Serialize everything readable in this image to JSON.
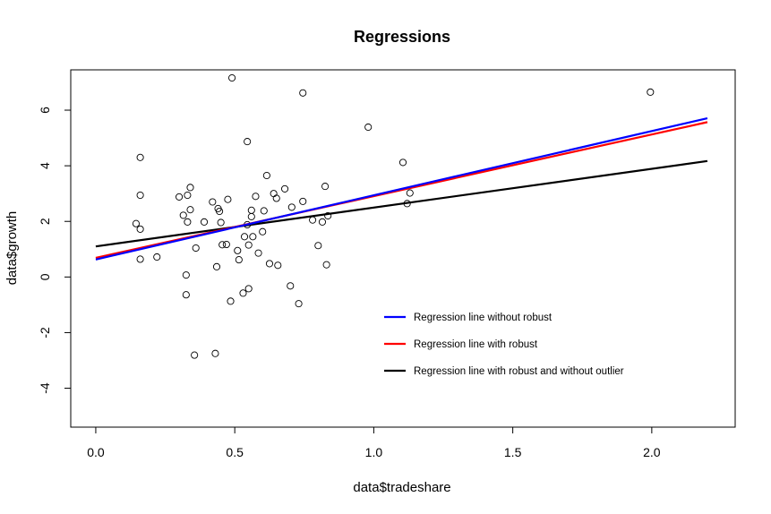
{
  "chart_data": {
    "type": "scatter",
    "title": "Regressions",
    "xlabel": "data$tradeshare",
    "ylabel": "data$growth",
    "xlim": [
      -0.09,
      2.3
    ],
    "ylim": [
      -5.4,
      7.45
    ],
    "x_ticks": [
      0.0,
      0.5,
      1.0,
      1.5,
      2.0
    ],
    "x_tick_labels": [
      "0.0",
      "0.5",
      "1.0",
      "1.5",
      "2.0"
    ],
    "y_ticks": [
      -4,
      -2,
      0,
      2,
      4,
      6
    ],
    "y_tick_labels": [
      "-4",
      "-2",
      "0",
      "2",
      "4",
      "6"
    ],
    "grid": false,
    "legend_position": "bottom-right",
    "points": [
      {
        "x": 0.49,
        "y": 7.16
      },
      {
        "x": 0.745,
        "y": 6.62
      },
      {
        "x": 1.995,
        "y": 6.65
      },
      {
        "x": 0.98,
        "y": 5.39
      },
      {
        "x": 0.545,
        "y": 4.87
      },
      {
        "x": 0.16,
        "y": 4.3
      },
      {
        "x": 1.105,
        "y": 4.12
      },
      {
        "x": 0.615,
        "y": 3.65
      },
      {
        "x": 0.825,
        "y": 3.26
      },
      {
        "x": 0.34,
        "y": 3.22
      },
      {
        "x": 0.68,
        "y": 3.17
      },
      {
        "x": 1.13,
        "y": 3.02
      },
      {
        "x": 0.64,
        "y": 3.0
      },
      {
        "x": 0.16,
        "y": 2.94
      },
      {
        "x": 0.33,
        "y": 2.94
      },
      {
        "x": 0.575,
        "y": 2.9
      },
      {
        "x": 0.3,
        "y": 2.88
      },
      {
        "x": 0.65,
        "y": 2.83
      },
      {
        "x": 0.475,
        "y": 2.79
      },
      {
        "x": 0.745,
        "y": 2.72
      },
      {
        "x": 0.42,
        "y": 2.7
      },
      {
        "x": 1.12,
        "y": 2.64
      },
      {
        "x": 0.705,
        "y": 2.51
      },
      {
        "x": 0.44,
        "y": 2.46
      },
      {
        "x": 0.34,
        "y": 2.42
      },
      {
        "x": 0.56,
        "y": 2.4
      },
      {
        "x": 0.605,
        "y": 2.38
      },
      {
        "x": 0.445,
        "y": 2.36
      },
      {
        "x": 0.315,
        "y": 2.22
      },
      {
        "x": 0.835,
        "y": 2.2
      },
      {
        "x": 0.56,
        "y": 2.17
      },
      {
        "x": 0.78,
        "y": 2.05
      },
      {
        "x": 0.815,
        "y": 1.98
      },
      {
        "x": 0.39,
        "y": 1.98
      },
      {
        "x": 0.33,
        "y": 1.98
      },
      {
        "x": 0.45,
        "y": 1.96
      },
      {
        "x": 0.145,
        "y": 1.92
      },
      {
        "x": 0.545,
        "y": 1.88
      },
      {
        "x": 0.16,
        "y": 1.72
      },
      {
        "x": 0.6,
        "y": 1.63
      },
      {
        "x": 0.535,
        "y": 1.45
      },
      {
        "x": 0.565,
        "y": 1.45
      },
      {
        "x": 0.47,
        "y": 1.17
      },
      {
        "x": 0.455,
        "y": 1.16
      },
      {
        "x": 0.55,
        "y": 1.15
      },
      {
        "x": 0.8,
        "y": 1.13
      },
      {
        "x": 0.36,
        "y": 1.04
      },
      {
        "x": 0.51,
        "y": 0.95
      },
      {
        "x": 0.585,
        "y": 0.86
      },
      {
        "x": 0.22,
        "y": 0.72
      },
      {
        "x": 0.16,
        "y": 0.64
      },
      {
        "x": 0.515,
        "y": 0.62
      },
      {
        "x": 0.625,
        "y": 0.48
      },
      {
        "x": 0.655,
        "y": 0.42
      },
      {
        "x": 0.83,
        "y": 0.44
      },
      {
        "x": 0.435,
        "y": 0.37
      },
      {
        "x": 0.325,
        "y": 0.07
      },
      {
        "x": 0.7,
        "y": -0.32
      },
      {
        "x": 0.55,
        "y": -0.42
      },
      {
        "x": 0.53,
        "y": -0.58
      },
      {
        "x": 0.325,
        "y": -0.64
      },
      {
        "x": 0.485,
        "y": -0.87
      },
      {
        "x": 0.73,
        "y": -0.96
      },
      {
        "x": 0.43,
        "y": -2.75
      },
      {
        "x": 0.355,
        "y": -2.81
      }
    ],
    "series": [
      {
        "name": "Regression line without robust",
        "color": "#0000ff",
        "x": [
          0,
          2.2
        ],
        "y": [
          0.63,
          5.71
        ]
      },
      {
        "name": "Regression line with robust",
        "color": "#ff0000",
        "x": [
          0,
          2.2
        ],
        "y": [
          0.69,
          5.57
        ]
      },
      {
        "name": "Regression line with robust and without outlier",
        "color": "#000000",
        "x": [
          0,
          2.2
        ],
        "y": [
          1.1,
          4.17
        ]
      }
    ]
  }
}
